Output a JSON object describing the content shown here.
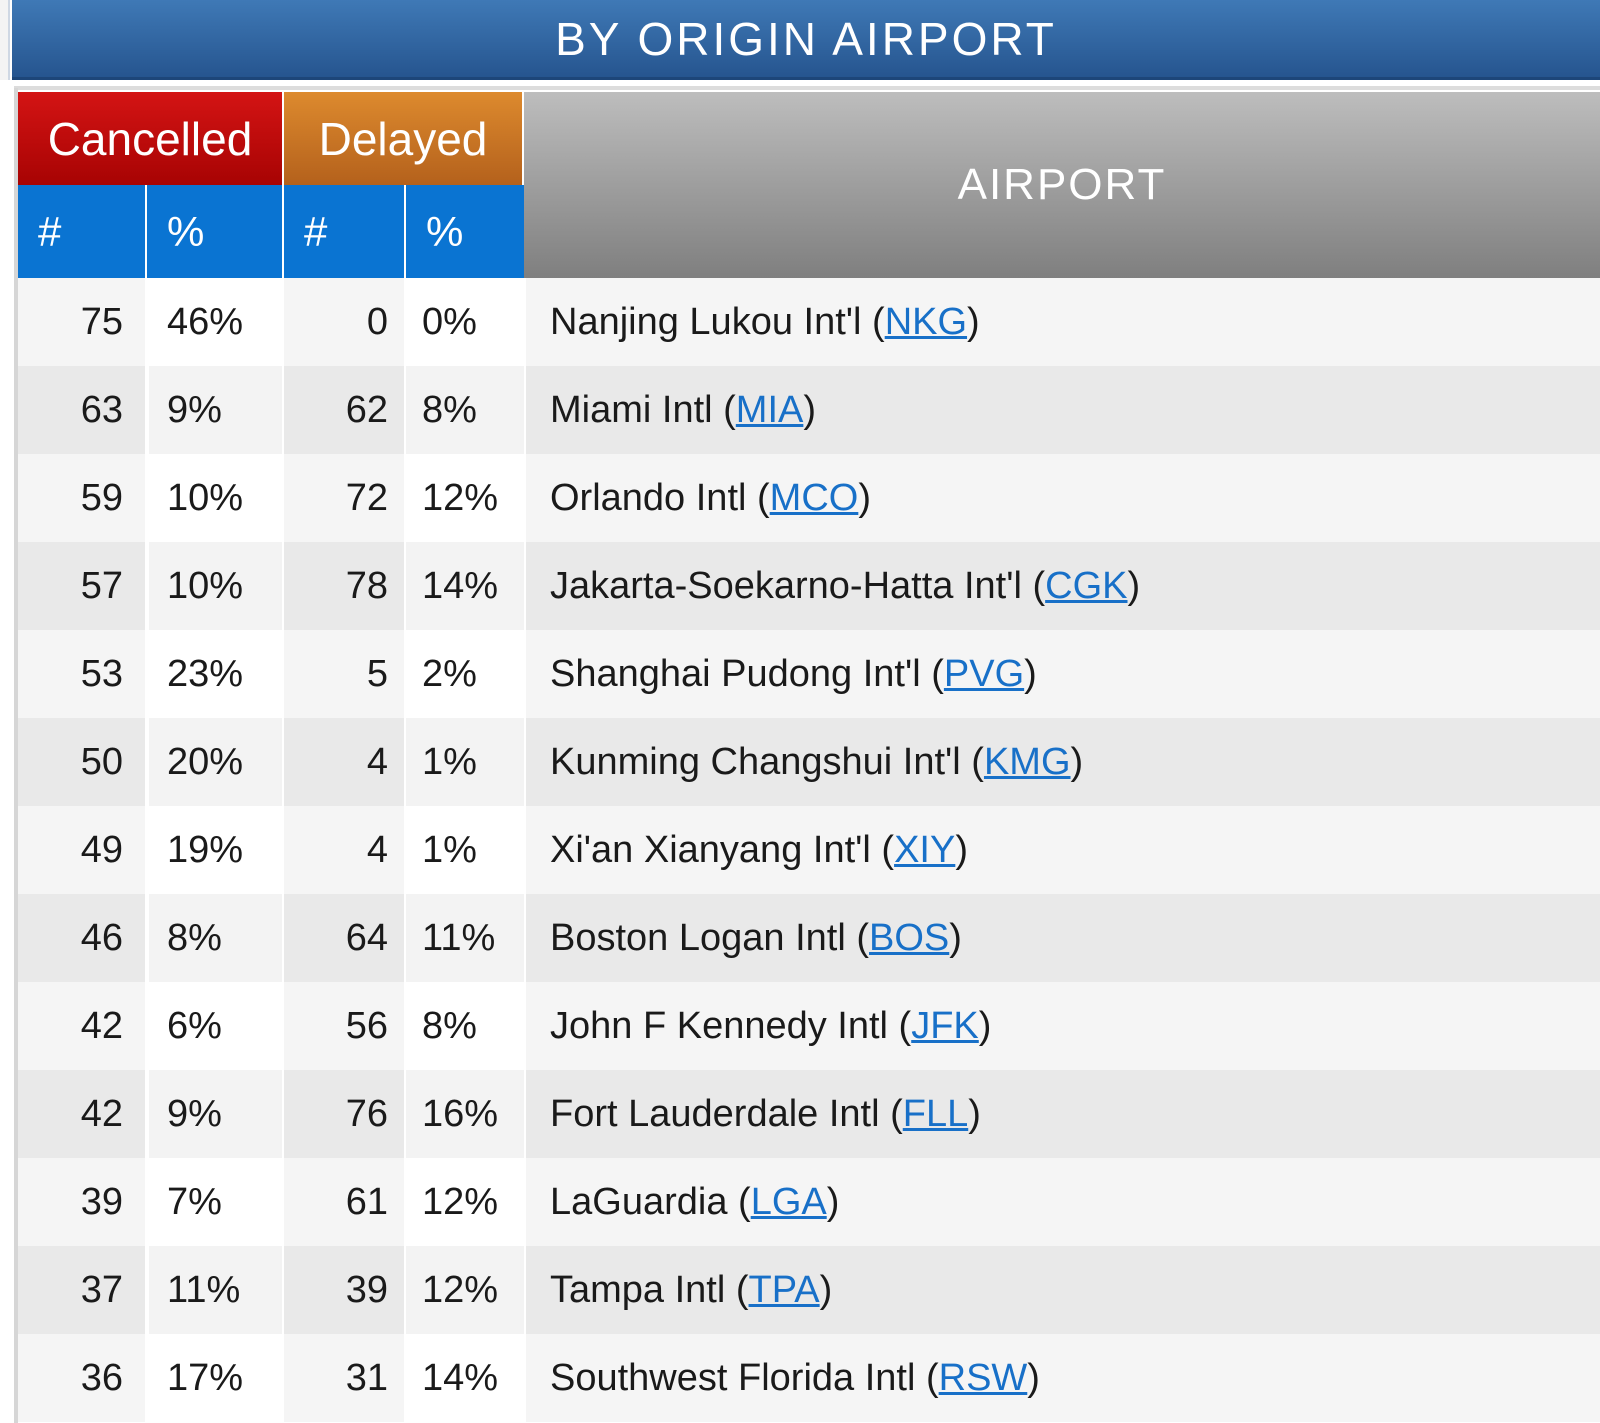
{
  "title": "BY ORIGIN AIRPORT",
  "headers": {
    "cancelled": "Cancelled",
    "delayed": "Delayed",
    "airport": "AIRPORT",
    "count_symbol": "#",
    "percent_symbol": "%"
  },
  "rows": [
    {
      "cancelled_num": "75",
      "cancelled_pct": "46%",
      "delayed_num": "0",
      "delayed_pct": "0%",
      "name": "Nanjing Lukou Int'l",
      "code": "NKG"
    },
    {
      "cancelled_num": "63",
      "cancelled_pct": "9%",
      "delayed_num": "62",
      "delayed_pct": "8%",
      "name": "Miami Intl",
      "code": "MIA"
    },
    {
      "cancelled_num": "59",
      "cancelled_pct": "10%",
      "delayed_num": "72",
      "delayed_pct": "12%",
      "name": "Orlando Intl",
      "code": "MCO"
    },
    {
      "cancelled_num": "57",
      "cancelled_pct": "10%",
      "delayed_num": "78",
      "delayed_pct": "14%",
      "name": "Jakarta-Soekarno-Hatta Int'l",
      "code": "CGK"
    },
    {
      "cancelled_num": "53",
      "cancelled_pct": "23%",
      "delayed_num": "5",
      "delayed_pct": "2%",
      "name": "Shanghai Pudong Int'l",
      "code": "PVG"
    },
    {
      "cancelled_num": "50",
      "cancelled_pct": "20%",
      "delayed_num": "4",
      "delayed_pct": "1%",
      "name": "Kunming Changshui Int'l",
      "code": "KMG"
    },
    {
      "cancelled_num": "49",
      "cancelled_pct": "19%",
      "delayed_num": "4",
      "delayed_pct": "1%",
      "name": "Xi'an Xianyang Int'l",
      "code": "XIY"
    },
    {
      "cancelled_num": "46",
      "cancelled_pct": "8%",
      "delayed_num": "64",
      "delayed_pct": "11%",
      "name": "Boston Logan Intl",
      "code": "BOS"
    },
    {
      "cancelled_num": "42",
      "cancelled_pct": "6%",
      "delayed_num": "56",
      "delayed_pct": "8%",
      "name": "John F Kennedy Intl",
      "code": "JFK"
    },
    {
      "cancelled_num": "42",
      "cancelled_pct": "9%",
      "delayed_num": "76",
      "delayed_pct": "16%",
      "name": "Fort Lauderdale Intl",
      "code": "FLL"
    },
    {
      "cancelled_num": "39",
      "cancelled_pct": "7%",
      "delayed_num": "61",
      "delayed_pct": "12%",
      "name": "LaGuardia",
      "code": "LGA"
    },
    {
      "cancelled_num": "37",
      "cancelled_pct": "11%",
      "delayed_num": "39",
      "delayed_pct": "12%",
      "name": "Tampa Intl",
      "code": "TPA"
    },
    {
      "cancelled_num": "36",
      "cancelled_pct": "17%",
      "delayed_num": "31",
      "delayed_pct": "14%",
      "name": "Southwest Florida Intl",
      "code": "RSW"
    }
  ],
  "colors": {
    "title_bar": "#2f62a0",
    "cancelled": "#c00a0a",
    "delayed": "#c97428",
    "subheader": "#0a74d2",
    "airport_header": "#a0a0a0",
    "link": "#1870c8"
  }
}
